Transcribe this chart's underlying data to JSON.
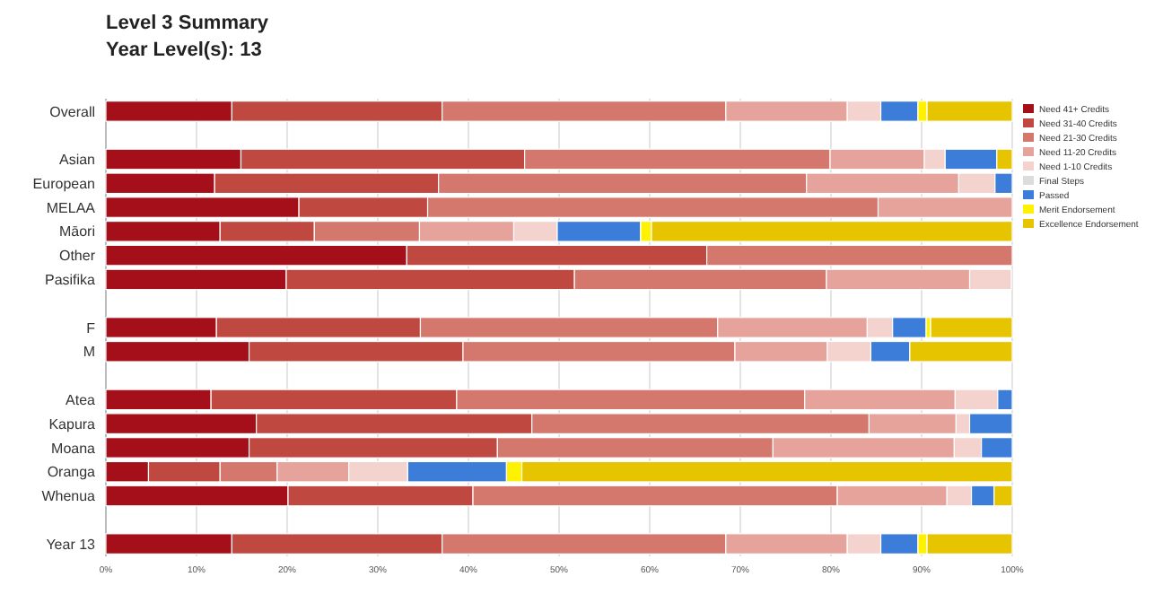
{
  "chart_data": {
    "type": "bar",
    "orientation": "horizontal",
    "stacked": true,
    "title": "Level 3 Summary",
    "subtitle": "Year Level(s): 13",
    "categories": [
      "Overall",
      null,
      "Asian",
      "European",
      "MELAA",
      "Māori",
      "Other",
      "Pasifika",
      null,
      "F",
      "M",
      null,
      "Atea",
      "Kapura",
      "Moana",
      "Oranga",
      "Whenua",
      null,
      "Year 13"
    ],
    "series": [
      {
        "name": "Need 41+ Credits",
        "color": "#a50f1a",
        "values": [
          13.9,
          null,
          14.9,
          12.0,
          21.3,
          12.6,
          33.2,
          19.9,
          null,
          12.2,
          15.8,
          null,
          11.6,
          16.6,
          15.8,
          4.7,
          20.1,
          null,
          13.9
        ]
      },
      {
        "name": "Need 31-40 Credits",
        "color": "#bf4840",
        "values": [
          23.2,
          null,
          31.3,
          24.7,
          14.2,
          10.4,
          33.1,
          31.8,
          null,
          22.5,
          23.6,
          null,
          27.1,
          30.4,
          27.4,
          7.9,
          20.4,
          null,
          23.2
        ]
      },
      {
        "name": "Need 21-30 Credits",
        "color": "#d4776c",
        "values": [
          31.3,
          null,
          33.7,
          40.6,
          49.7,
          11.6,
          33.7,
          27.8,
          null,
          32.8,
          30.0,
          null,
          38.4,
          37.2,
          30.4,
          6.3,
          40.2,
          null,
          31.3
        ]
      },
      {
        "name": "Need 11-20 Credits",
        "color": "#e5a39c",
        "values": [
          13.4,
          null,
          10.4,
          16.8,
          14.8,
          10.4,
          null,
          15.8,
          null,
          16.5,
          10.2,
          null,
          16.6,
          9.6,
          20.0,
          7.9,
          12.1,
          null,
          13.4
        ]
      },
      {
        "name": "Need 1-10 Credits",
        "color": "#f4d2ce",
        "values": [
          3.7,
          null,
          2.3,
          4.0,
          null,
          4.8,
          null,
          4.6,
          null,
          2.8,
          4.8,
          null,
          4.7,
          1.5,
          3.0,
          6.5,
          2.7,
          null,
          3.7
        ]
      },
      {
        "name": "Final Steps",
        "color": "#dcdcdc",
        "values": [
          null,
          null,
          null,
          null,
          null,
          null,
          null,
          null,
          null,
          null,
          null,
          null,
          null,
          null,
          null,
          null,
          null,
          null,
          null
        ]
      },
      {
        "name": "Passed",
        "color": "#3b7dd8",
        "values": [
          4.1,
          null,
          5.7,
          1.9,
          null,
          9.2,
          null,
          null,
          null,
          3.7,
          4.3,
          null,
          1.6,
          4.7,
          3.4,
          10.9,
          2.5,
          null,
          4.1
        ]
      },
      {
        "name": "Merit Endorsement",
        "color": "#fff200",
        "values": [
          1.0,
          null,
          null,
          null,
          null,
          1.2,
          null,
          null,
          null,
          0.5,
          null,
          null,
          null,
          null,
          null,
          1.7,
          null,
          null,
          1.0
        ]
      },
      {
        "name": "Excellence Endorsement",
        "color": "#e6c400",
        "values": [
          9.4,
          null,
          1.7,
          null,
          null,
          39.8,
          null,
          null,
          null,
          9.0,
          11.3,
          null,
          null,
          null,
          null,
          54.1,
          2.0,
          null,
          9.4
        ]
      }
    ],
    "xlim": [
      0,
      100
    ],
    "xticks": [
      {
        "value": 0,
        "label": "0%"
      },
      {
        "value": 10,
        "label": "10%"
      },
      {
        "value": 20,
        "label": "20%"
      },
      {
        "value": 30,
        "label": "30%"
      },
      {
        "value": 40,
        "label": "40%"
      },
      {
        "value": 50,
        "label": "50%"
      },
      {
        "value": 60,
        "label": "60%"
      },
      {
        "value": 70,
        "label": "70%"
      },
      {
        "value": 80,
        "label": "80%"
      },
      {
        "value": 90,
        "label": "90%"
      },
      {
        "value": 100,
        "label": "100%"
      }
    ],
    "grid": "x",
    "legend": "right"
  }
}
